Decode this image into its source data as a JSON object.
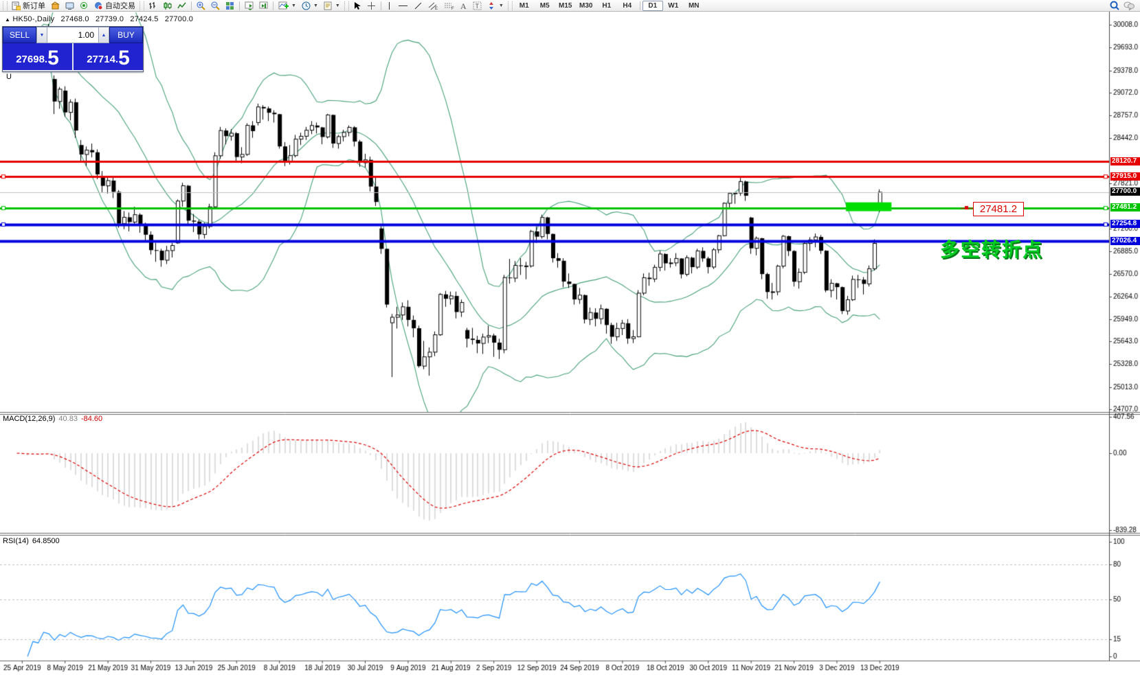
{
  "toolbar": {
    "new_order_label": "新订单",
    "auto_trading_label": "自动交易",
    "timeframes": [
      {
        "label": "M1",
        "active": false
      },
      {
        "label": "M5",
        "active": false
      },
      {
        "label": "M15",
        "active": false
      },
      {
        "label": "M30",
        "active": false
      },
      {
        "label": "H1",
        "active": false
      },
      {
        "label": "H4",
        "active": false
      },
      {
        "label": "D1",
        "active": true
      },
      {
        "label": "W1",
        "active": false
      },
      {
        "label": "MN",
        "active": false
      }
    ]
  },
  "quote": {
    "symbol": "HK50-,Daily",
    "open": "27468.0",
    "high": "27739.0",
    "low": "27424.5",
    "close": "27700.0"
  },
  "trade": {
    "sell_label": "SELL",
    "buy_label": "BUY",
    "volume": "1.00",
    "sell_main": "27698",
    "sell_point": ".",
    "sell_pip": "5",
    "buy_main": "27714",
    "buy_point": ".",
    "buy_pip": "5"
  },
  "stray": {
    "u": "U"
  },
  "annotations": {
    "turning_point": "多空转折点",
    "price_label": "27481.2",
    "highlight_rect": {
      "bar_from": 155,
      "bar_to": 163.5,
      "price_top": 27560,
      "price_bottom": 27438,
      "color": "#00dd00"
    }
  },
  "hlines": [
    {
      "price": 28120.7,
      "label": "28120.7",
      "color": "#e60000",
      "thickness": 3,
      "selected": false
    },
    {
      "price": 27915.0,
      "label": "27915.0",
      "color": "#e60000",
      "thickness": 3,
      "selected": true
    },
    {
      "price": 27700.0,
      "label": "27700.0",
      "color": "#c0c0c0",
      "label_bg": "#000000",
      "thickness": 1,
      "selected": false,
      "current_price": true
    },
    {
      "price": 27481.2,
      "label": "27481.2",
      "color": "#00c400",
      "thickness": 3,
      "selected": true
    },
    {
      "price": 27254.8,
      "label": "27254.8",
      "color": "#0000dd",
      "thickness": 4,
      "selected": true
    },
    {
      "price": 27026.4,
      "label": "27026.4",
      "color": "#0000dd",
      "thickness": 4,
      "selected": false
    }
  ],
  "price_axis": {
    "ticks": [
      30008.0,
      29693.0,
      29378.0,
      29072.0,
      28757.0,
      28442.0,
      27821.0,
      27200.0,
      26885.0,
      26570.0,
      26264.0,
      25949.0,
      25643.0,
      25328.0,
      25013.0,
      24707.0
    ]
  },
  "macd": {
    "title": "MACD(12,26,9)",
    "value_main": "40.83",
    "value_signal": "-84.60",
    "axis": [
      "407.56",
      "0.00",
      "-839.28"
    ],
    "fast": 12,
    "slow": 26,
    "signal": 9,
    "hist_color": "#bdbdbd",
    "signal_color": "#dd0000"
  },
  "rsi": {
    "title": "RSI(14)",
    "value": "64.8500",
    "period": 14,
    "axis": [
      "100",
      "80",
      "50",
      "15",
      "0"
    ],
    "levels": [
      80,
      50,
      15
    ],
    "line_color": "#1e90ff"
  },
  "x_axis": {
    "label_every": 8,
    "first_label_index": 1,
    "labels": [
      "25 Apr 2019",
      "8 May 2019",
      "21 May 2019",
      "31 May 2019",
      "13 Jun 2019",
      "25 Jun 2019",
      "8 Jul 2019",
      "18 Jul 2019",
      "30 Jul 2019",
      "9 Aug 2019",
      "21 Aug 2019",
      "2 Sep 2019",
      "12 Sep 2019",
      "24 Sep 2019",
      "8 Oct 2019",
      "18 Oct 2019",
      "30 Oct 2019",
      "11 Nov 2019",
      "21 Nov 2019",
      "3 Dec 2019",
      "13 Dec 2019"
    ]
  },
  "colors": {
    "bull": "#ffffff",
    "bear": "#000000",
    "wick": "#000000",
    "bollinger": "#46a078",
    "current_price_line": "#c0c0c0",
    "background": "#ffffff"
  },
  "chart_data": {
    "type": "candlestick",
    "symbol": "HK50",
    "timeframe": "Daily",
    "bollinger": {
      "period": 20,
      "deviation": 2
    },
    "ohlc": [
      [
        29950,
        29970,
        29750,
        29805
      ],
      [
        29805,
        29860,
        29620,
        29649
      ],
      [
        29649,
        29720,
        29430,
        29605
      ],
      [
        29660,
        29920,
        29640,
        29892
      ],
      [
        29880,
        29910,
        29540,
        29699
      ],
      [
        29710,
        29965,
        29660,
        29944
      ],
      [
        29940,
        30020,
        29750,
        29788
      ],
      [
        29260,
        29310,
        28777,
        28950
      ],
      [
        28950,
        29150,
        28850,
        29120
      ],
      [
        29100,
        29160,
        28740,
        28800
      ],
      [
        28800,
        28980,
        28690,
        28940
      ],
      [
        28940,
        28990,
        28450,
        28550
      ],
      [
        28350,
        28420,
        28110,
        28220
      ],
      [
        28220,
        28330,
        28060,
        28280
      ],
      [
        28280,
        28370,
        28180,
        28250
      ],
      [
        28250,
        28290,
        27880,
        27946
      ],
      [
        27900,
        27990,
        27700,
        27787
      ],
      [
        27787,
        27900,
        27680,
        27860
      ],
      [
        27860,
        27910,
        27620,
        27705
      ],
      [
        27705,
        27730,
        27210,
        27267
      ],
      [
        27267,
        27440,
        27190,
        27354
      ],
      [
        27354,
        27420,
        27160,
        27288
      ],
      [
        27288,
        27500,
        27250,
        27390
      ],
      [
        27390,
        27410,
        27140,
        27235
      ],
      [
        27235,
        27280,
        27020,
        27114
      ],
      [
        27114,
        27160,
        26840,
        26901
      ],
      [
        26901,
        27000,
        26740,
        26893
      ],
      [
        26893,
        26920,
        26672,
        26762
      ],
      [
        26762,
        26960,
        26710,
        26895
      ],
      [
        26895,
        27000,
        26800,
        26965
      ],
      [
        27000,
        27600,
        26990,
        27578
      ],
      [
        27578,
        27830,
        27500,
        27789
      ],
      [
        27789,
        27800,
        27240,
        27308
      ],
      [
        27308,
        27400,
        27150,
        27294
      ],
      [
        27294,
        27320,
        27050,
        27118
      ],
      [
        27118,
        27280,
        27060,
        27227
      ],
      [
        27227,
        27540,
        27200,
        27498
      ],
      [
        27498,
        28250,
        27480,
        28202
      ],
      [
        28202,
        28600,
        28160,
        28550
      ],
      [
        28550,
        28580,
        28360,
        28473
      ],
      [
        28473,
        28570,
        28410,
        28513
      ],
      [
        28513,
        28530,
        28130,
        28185
      ],
      [
        28185,
        28320,
        28100,
        28221
      ],
      [
        28221,
        28650,
        28200,
        28621
      ],
      [
        28621,
        28680,
        28450,
        28542
      ],
      [
        28660,
        28920,
        28620,
        28875
      ],
      [
        28875,
        28900,
        28700,
        28855
      ],
      [
        28855,
        28880,
        28680,
        28795
      ],
      [
        28795,
        28830,
        28660,
        28775
      ],
      [
        28775,
        28780,
        28300,
        28331
      ],
      [
        28331,
        28390,
        28060,
        28116
      ],
      [
        28116,
        28350,
        28080,
        28204
      ],
      [
        28204,
        28490,
        28180,
        28431
      ],
      [
        28431,
        28520,
        28350,
        28471
      ],
      [
        28471,
        28600,
        28420,
        28554
      ],
      [
        28554,
        28680,
        28500,
        28619
      ],
      [
        28619,
        28660,
        28510,
        28593
      ],
      [
        28593,
        28600,
        28360,
        28461
      ],
      [
        28461,
        28780,
        28440,
        28765
      ],
      [
        28765,
        28770,
        28310,
        28371
      ],
      [
        28371,
        28490,
        28300,
        28466
      ],
      [
        28466,
        28560,
        28400,
        28524
      ],
      [
        28524,
        28620,
        28470,
        28594
      ],
      [
        28594,
        28610,
        28330,
        28398
      ],
      [
        28398,
        28420,
        28050,
        28106
      ],
      [
        28106,
        28230,
        28040,
        28146
      ],
      [
        28146,
        28190,
        27710,
        27778
      ],
      [
        27778,
        27900,
        27510,
        27565
      ],
      [
        27200,
        27230,
        26850,
        26919
      ],
      [
        26919,
        26920,
        26110,
        26151
      ],
      [
        25900,
        26020,
        25151,
        25976
      ],
      [
        25976,
        26120,
        25820,
        26007
      ],
      [
        26007,
        26180,
        25940,
        26120
      ],
      [
        26120,
        26210,
        25850,
        25939
      ],
      [
        25939,
        26000,
        25700,
        25824
      ],
      [
        25824,
        25860,
        25281,
        25302
      ],
      [
        25302,
        25650,
        25260,
        25430
      ],
      [
        25430,
        25560,
        25170,
        25495
      ],
      [
        25495,
        25780,
        25440,
        25734
      ],
      [
        25734,
        26310,
        25720,
        26291
      ],
      [
        26291,
        26340,
        26120,
        26231
      ],
      [
        26231,
        26330,
        26150,
        26270
      ],
      [
        26270,
        26330,
        25960,
        26048
      ],
      [
        26048,
        26220,
        25980,
        26179
      ],
      [
        25800,
        25830,
        25560,
        25680
      ],
      [
        25680,
        25830,
        25600,
        25664
      ],
      [
        25664,
        25720,
        25480,
        25615
      ],
      [
        25615,
        25750,
        25470,
        25703
      ],
      [
        25703,
        25860,
        25620,
        25724
      ],
      [
        25724,
        25750,
        25430,
        25626
      ],
      [
        25626,
        25680,
        25400,
        25528
      ],
      [
        25528,
        26560,
        25480,
        26523
      ],
      [
        26523,
        26780,
        26440,
        26515
      ],
      [
        26515,
        26750,
        26460,
        26691
      ],
      [
        26691,
        26790,
        26560,
        26681
      ],
      [
        26681,
        26740,
        26500,
        26683
      ],
      [
        26683,
        27180,
        26660,
        27159
      ],
      [
        27159,
        27230,
        27000,
        27087
      ],
      [
        27087,
        27390,
        27060,
        27352
      ],
      [
        27352,
        27360,
        27050,
        27124
      ],
      [
        27124,
        27130,
        26730,
        26790
      ],
      [
        26790,
        26860,
        26660,
        26754
      ],
      [
        26754,
        26790,
        26390,
        26468
      ],
      [
        26468,
        26580,
        26380,
        26435
      ],
      [
        26435,
        26440,
        26150,
        26222
      ],
      [
        26222,
        26380,
        26160,
        26281
      ],
      [
        26281,
        26290,
        25890,
        25945
      ],
      [
        25945,
        26110,
        25870,
        26041
      ],
      [
        26041,
        26100,
        25850,
        25955
      ],
      [
        25955,
        26150,
        25880,
        26092
      ],
      [
        26092,
        26100,
        25750,
        25869
      ],
      [
        25869,
        25900,
        25610,
        25707
      ],
      [
        25707,
        25900,
        25650,
        25821
      ],
      [
        25821,
        25940,
        25730,
        25893
      ],
      [
        25893,
        25950,
        25610,
        25682
      ],
      [
        25682,
        25800,
        25620,
        25707
      ],
      [
        25707,
        26350,
        25700,
        26308
      ],
      [
        26308,
        26580,
        26280,
        26521
      ],
      [
        26521,
        26590,
        26410,
        26503
      ],
      [
        26503,
        26700,
        26460,
        26664
      ],
      [
        26664,
        26890,
        26610,
        26848
      ],
      [
        26848,
        26860,
        26620,
        26719
      ],
      [
        26719,
        26790,
        26660,
        26725
      ],
      [
        26725,
        26860,
        26680,
        26786
      ],
      [
        26786,
        26790,
        26510,
        26567
      ],
      [
        26567,
        26830,
        26540,
        26797
      ],
      [
        26797,
        26810,
        26580,
        26667
      ],
      [
        26667,
        26920,
        26640,
        26891
      ],
      [
        26891,
        26940,
        26740,
        26787
      ],
      [
        26787,
        26810,
        26580,
        26668
      ],
      [
        26668,
        26930,
        26640,
        26906
      ],
      [
        26906,
        27110,
        26860,
        27100
      ],
      [
        27100,
        27560,
        27090,
        27547
      ],
      [
        27547,
        27700,
        27480,
        27683
      ],
      [
        27683,
        27700,
        27540,
        27688
      ],
      [
        27688,
        27895,
        27650,
        27847
      ],
      [
        27847,
        27860,
        27580,
        27651
      ],
      [
        27350,
        27360,
        26850,
        26926
      ],
      [
        26926,
        27090,
        26830,
        27065
      ],
      [
        27065,
        27070,
        26500,
        26571
      ],
      [
        26571,
        26590,
        26230,
        26324
      ],
      [
        26324,
        26450,
        26220,
        26327
      ],
      [
        26327,
        26700,
        26280,
        26681
      ],
      [
        26681,
        27110,
        26650,
        27093
      ],
      [
        27093,
        27100,
        26820,
        26889
      ],
      [
        26889,
        26900,
        26400,
        26466
      ],
      [
        26466,
        26650,
        26370,
        26595
      ],
      [
        26595,
        27010,
        26570,
        26993
      ],
      [
        26993,
        27080,
        26890,
        27043
      ],
      [
        27043,
        27130,
        26940,
        27083
      ],
      [
        27083,
        27110,
        26850,
        26893
      ],
      [
        26893,
        26900,
        26320,
        26346
      ],
      [
        26346,
        26500,
        26250,
        26444
      ],
      [
        26444,
        26450,
        26220,
        26391
      ],
      [
        26391,
        26400,
        26020,
        26062
      ],
      [
        26062,
        26270,
        26010,
        26217
      ],
      [
        26217,
        26550,
        26200,
        26498
      ],
      [
        26498,
        26560,
        26380,
        26494
      ],
      [
        26494,
        26530,
        26290,
        26436
      ],
      [
        26436,
        26690,
        26400,
        26645
      ],
      [
        26645,
        27050,
        26620,
        26994
      ],
      [
        27468,
        27739,
        27424.5,
        27700
      ]
    ]
  }
}
